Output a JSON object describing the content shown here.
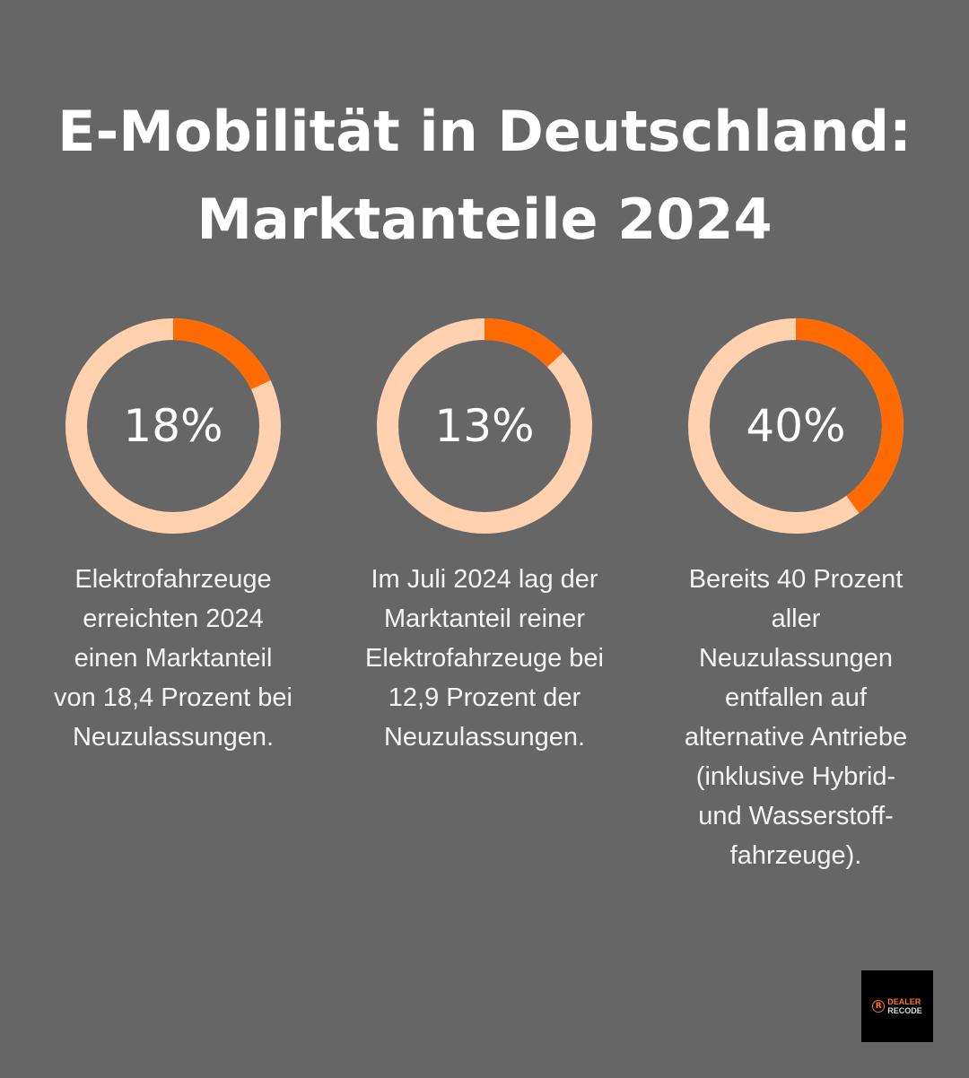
{
  "title": {
    "line1": "E-Mobilität in Deutschland:",
    "line2": "Marktanteile 2024"
  },
  "colors": {
    "background": "#666666",
    "accent": "#FF6B00",
    "track": "#FFD1AE"
  },
  "chart_data": [
    {
      "type": "pie",
      "variant": "donut",
      "value": 18,
      "label": "18%",
      "description": [
        "Elektrofahrzeuge",
        "erreichten 2024",
        "einen Marktanteil",
        "von 18,4 Prozent bei",
        "Neuzulassungen."
      ]
    },
    {
      "type": "pie",
      "variant": "donut",
      "value": 13,
      "label": "13%",
      "description": [
        "Im Juli 2024 lag der",
        "Marktanteil reiner",
        "Elektrofahrzeuge bei",
        "12,9 Prozent der",
        "Neuzulassungen."
      ]
    },
    {
      "type": "pie",
      "variant": "donut",
      "value": 40,
      "label": "40%",
      "description": [
        "Bereits 40 Prozent",
        "aller",
        "Neuzulassungen",
        "entfallen auf",
        "alternative Antriebe",
        "(inklusive Hybrid-",
        "und Wasserstoff-",
        "fahrzeuge)."
      ]
    }
  ],
  "logo": {
    "line1": "DEALER",
    "line2": "RECODE",
    "mark": "R"
  }
}
